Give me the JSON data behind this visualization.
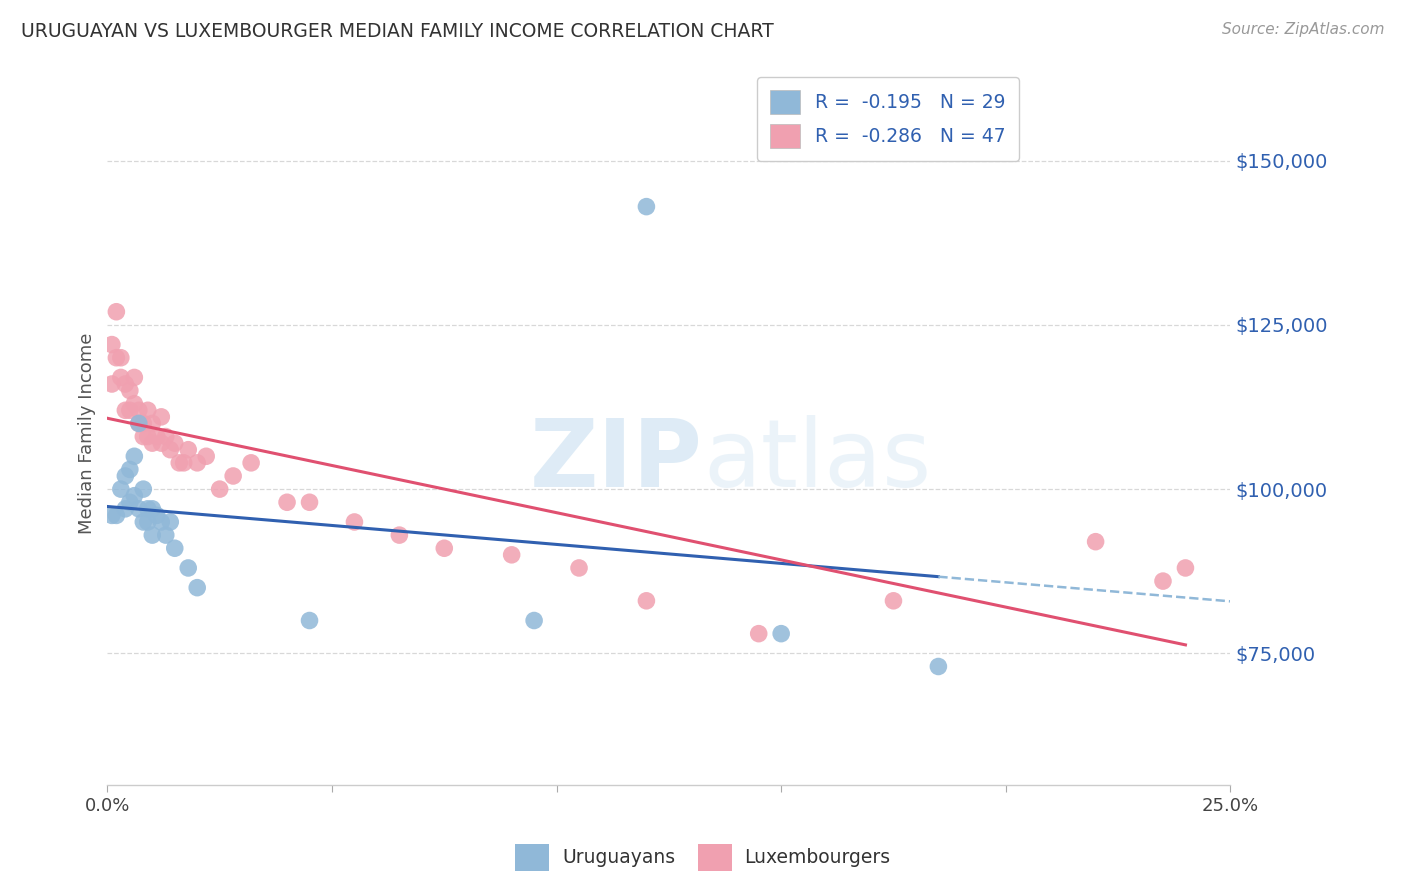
{
  "title": "URUGUAYAN VS LUXEMBOURGER MEDIAN FAMILY INCOME CORRELATION CHART",
  "source": "Source: ZipAtlas.com",
  "ylabel": "Median Family Income",
  "watermark_zip": "ZIP",
  "watermark_atlas": "atlas",
  "legend_line1_r": "R = ",
  "legend_line1_rv": "-0.195",
  "legend_line1_n": "  N = 29",
  "legend_line2_r": "R = ",
  "legend_line2_rv": "-0.286",
  "legend_line2_n": "  N = 47",
  "uruguayan_color": "#90b8d8",
  "luxembourger_color": "#f0a0b0",
  "uruguayan_line_color": "#3060b0",
  "luxembourger_line_color": "#e05070",
  "uruguayan_dash_color": "#90b8d8",
  "r_value_color": "#3060b0",
  "ytick_color": "#3060b0",
  "background_color": "#ffffff",
  "grid_color": "#d8d8d8",
  "xlim": [
    0.0,
    0.25
  ],
  "ylim": [
    55000,
    162000
  ],
  "yticks": [
    75000,
    100000,
    125000,
    150000
  ],
  "ytick_labels": [
    "$75,000",
    "$100,000",
    "$125,000",
    "$150,000"
  ],
  "uruguayan_x": [
    0.001,
    0.002,
    0.003,
    0.004,
    0.004,
    0.005,
    0.005,
    0.006,
    0.006,
    0.007,
    0.007,
    0.008,
    0.008,
    0.009,
    0.009,
    0.01,
    0.01,
    0.011,
    0.012,
    0.013,
    0.014,
    0.015,
    0.018,
    0.02,
    0.045,
    0.095,
    0.12,
    0.15,
    0.185
  ],
  "uruguayan_y": [
    96000,
    96000,
    100000,
    102000,
    97000,
    103000,
    98000,
    105000,
    99000,
    110000,
    97000,
    100000,
    95000,
    97000,
    95000,
    97000,
    93000,
    96000,
    95000,
    93000,
    95000,
    91000,
    88000,
    85000,
    80000,
    80000,
    143000,
    78000,
    73000
  ],
  "luxembourger_x": [
    0.001,
    0.001,
    0.002,
    0.002,
    0.003,
    0.003,
    0.004,
    0.004,
    0.005,
    0.005,
    0.006,
    0.006,
    0.007,
    0.007,
    0.008,
    0.008,
    0.009,
    0.009,
    0.01,
    0.01,
    0.011,
    0.012,
    0.012,
    0.013,
    0.014,
    0.015,
    0.016,
    0.017,
    0.018,
    0.02,
    0.022,
    0.025,
    0.028,
    0.032,
    0.04,
    0.045,
    0.055,
    0.065,
    0.075,
    0.09,
    0.105,
    0.12,
    0.145,
    0.175,
    0.22,
    0.235,
    0.24
  ],
  "luxembourger_y": [
    122000,
    116000,
    127000,
    120000,
    120000,
    117000,
    116000,
    112000,
    115000,
    112000,
    117000,
    113000,
    112000,
    110000,
    110000,
    108000,
    112000,
    108000,
    110000,
    107000,
    108000,
    107000,
    111000,
    108000,
    106000,
    107000,
    104000,
    104000,
    106000,
    104000,
    105000,
    100000,
    102000,
    104000,
    98000,
    98000,
    95000,
    93000,
    91000,
    90000,
    88000,
    83000,
    78000,
    83000,
    92000,
    86000,
    88000
  ]
}
